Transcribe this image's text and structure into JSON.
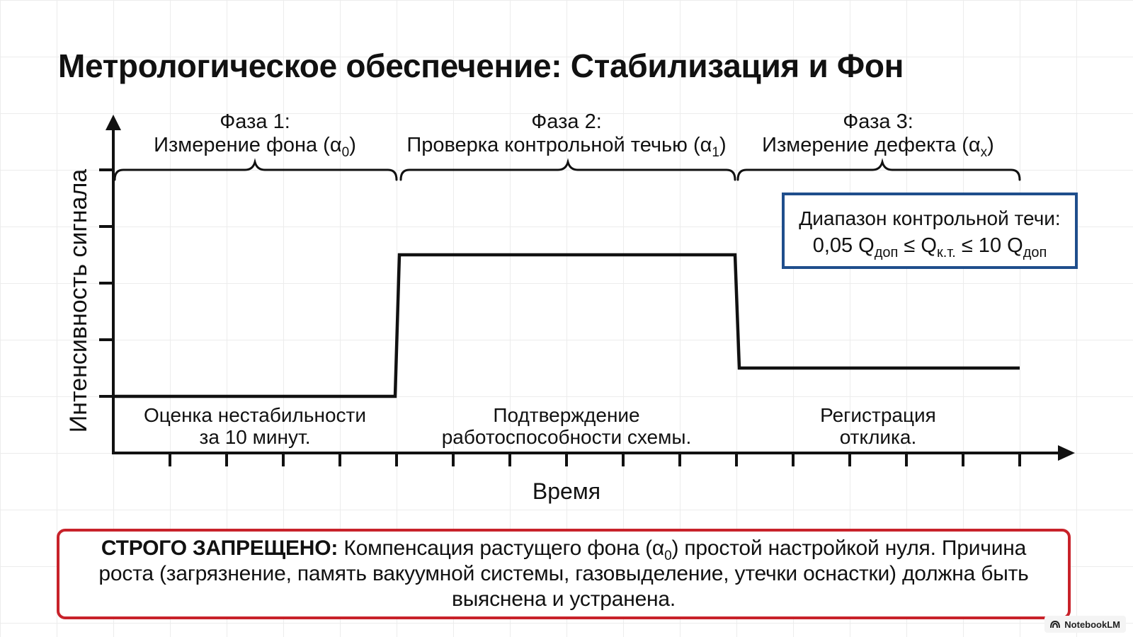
{
  "title": "Метрологическое обеспечение: Стабилизация и Фон",
  "diagram": {
    "xlabel": "Время",
    "ylabel": "Интенсивность сигнала",
    "phases": [
      {
        "title": "Фаза 1:",
        "subtitle": "Измерение фона (α",
        "subscript": "0",
        "suffix": ")",
        "desc_line1": "Оценка нестабильности",
        "desc_line2": "за 10 минут."
      },
      {
        "title": "Фаза 2:",
        "subtitle": "Проверка контрольной течью (α",
        "subscript": "1",
        "suffix": ")",
        "desc_line1": "Подтверждение",
        "desc_line2": "работоспособности схемы."
      },
      {
        "title": "Фаза 3:",
        "subtitle": "Измерение дефекта (α",
        "subscript": "x",
        "suffix": ")",
        "desc_line1": "Регистрация",
        "desc_line2": "отклика."
      }
    ],
    "signal_levels": {
      "phase1": 1,
      "phase2": 3.5,
      "phase3": 1.5
    },
    "range_box": {
      "line1": "Диапазон контрольной течи:",
      "line2_a": "0,05 Q",
      "sub_a": "доп",
      "line2_b": " ≤ Q",
      "sub_b": "к.т.",
      "line2_c": " ≤ 10 Q",
      "sub_c": "доп",
      "border_color": "#1f4e8c"
    }
  },
  "notice": {
    "bold": "СТРОГО ЗАПРЕЩЕНО:",
    "text_a": " Компенсация растущего фона (α",
    "sub": "0",
    "text_b": ") простой настройкой нуля. Причина роста (загрязнение, память вакуумной системы, газовыделение, утечки оснастки) должна быть выяснена и устранена.",
    "border_color": "#c8222a"
  },
  "watermark": "NotebookLM"
}
